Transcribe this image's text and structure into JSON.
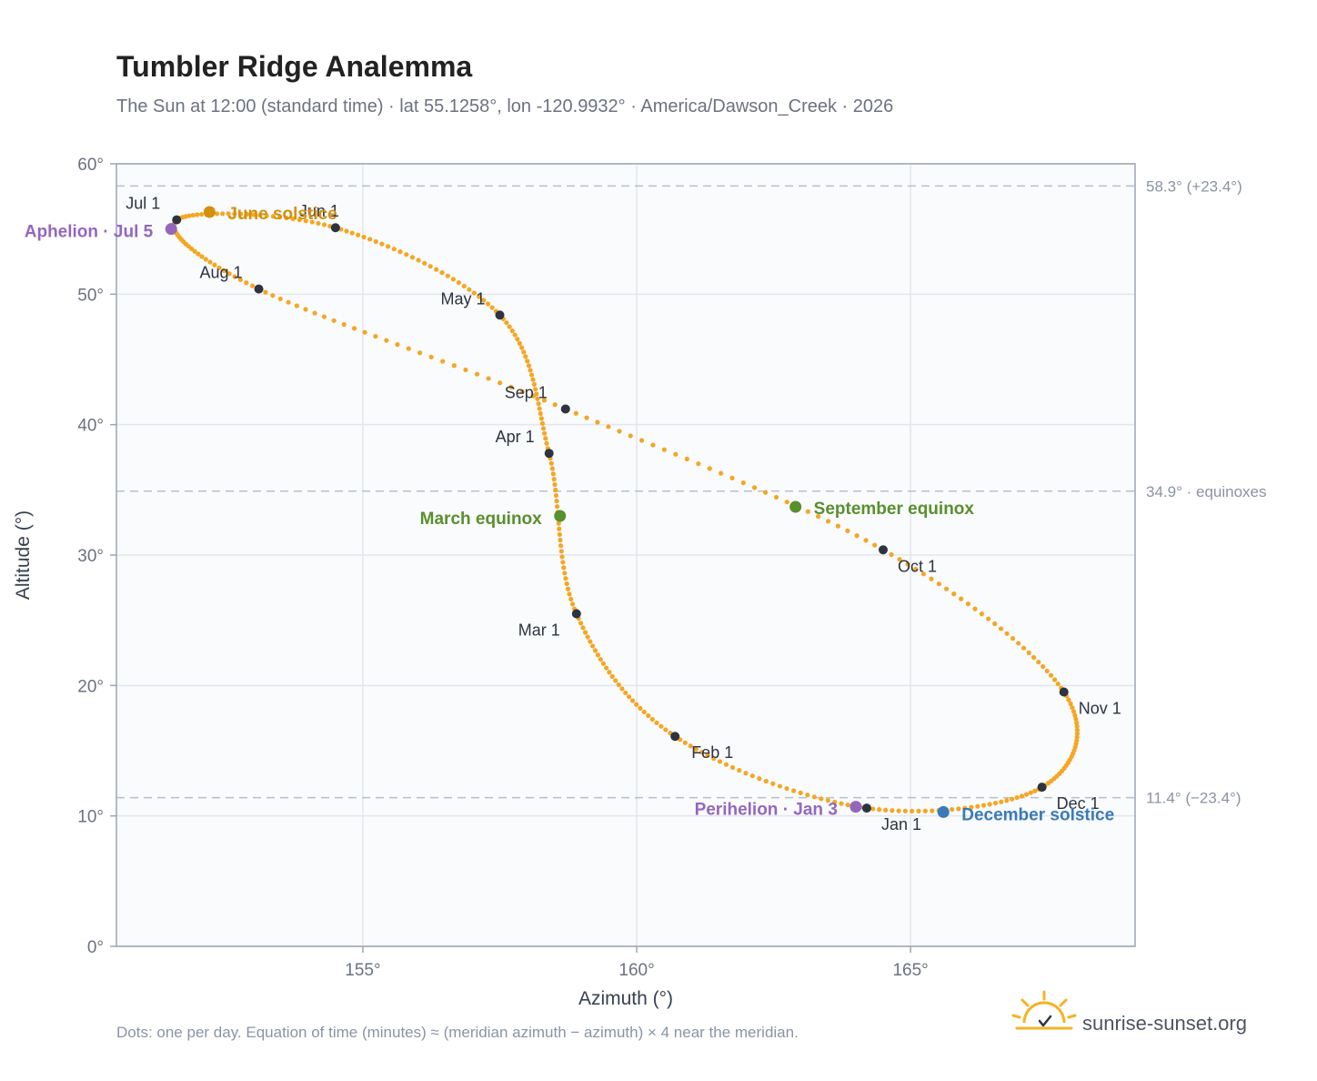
{
  "header": {
    "title": "Tumbler Ridge Analemma",
    "subtitle": "The Sun at 12:00 (standard time) · lat 55.1258°, lon -120.9932° · America/Dawson_Creek · 2026"
  },
  "footer": {
    "note": "Dots: one per day. Equation of time (minutes) ≈ (meridian azimuth − azimuth) × 4 near the meridian.",
    "brand": "sunrise-sunset.org"
  },
  "chart_data": {
    "type": "scatter",
    "title": "Tumbler Ridge Analemma",
    "xlabel": "Azimuth (°)",
    "ylabel": "Altitude (°)",
    "xlim": [
      150.5,
      169.1
    ],
    "ylim": [
      0,
      60
    ],
    "x_ticks": [
      {
        "value": 155,
        "label": "155°"
      },
      {
        "value": 160,
        "label": "160°"
      },
      {
        "value": 165,
        "label": "165°"
      }
    ],
    "y_ticks": [
      {
        "value": 0,
        "label": "0°"
      },
      {
        "value": 10,
        "label": "10°"
      },
      {
        "value": 20,
        "label": "20°"
      },
      {
        "value": 30,
        "label": "30°"
      },
      {
        "value": 40,
        "label": "40°"
      },
      {
        "value": 50,
        "label": "50°"
      },
      {
        "value": 60,
        "label": "60°"
      }
    ],
    "grid": true,
    "reference_lines": [
      {
        "value": 58.3,
        "label": "58.3° (+23.4°)"
      },
      {
        "value": 34.9,
        "label": "34.9° · equinoxes"
      },
      {
        "value": 11.4,
        "label": "11.4° (−23.4°)"
      }
    ],
    "daily_dot_color": "#f5a623",
    "month_points": [
      {
        "label": "Jan 1",
        "az": 164.2,
        "alt": 10.6
      },
      {
        "label": "Feb 1",
        "az": 160.7,
        "alt": 16.1
      },
      {
        "label": "Mar 1",
        "az": 158.9,
        "alt": 25.5
      },
      {
        "label": "Apr 1",
        "az": 158.4,
        "alt": 37.8
      },
      {
        "label": "May 1",
        "az": 157.5,
        "alt": 48.4
      },
      {
        "label": "Jun 1",
        "az": 154.5,
        "alt": 55.1
      },
      {
        "label": "Jul 1",
        "az": 151.6,
        "alt": 55.7
      },
      {
        "label": "Aug 1",
        "az": 153.1,
        "alt": 50.4
      },
      {
        "label": "Sep 1",
        "az": 158.7,
        "alt": 41.2
      },
      {
        "label": "Oct 1",
        "az": 164.5,
        "alt": 30.4
      },
      {
        "label": "Nov 1",
        "az": 167.8,
        "alt": 19.5
      },
      {
        "label": "Dec 1",
        "az": 167.4,
        "alt": 12.2
      }
    ],
    "special_points": [
      {
        "label": "June solstice",
        "az": 152.2,
        "alt": 56.3,
        "color": "#d4900d"
      },
      {
        "label": "Aphelion · Jul 5",
        "az": 151.5,
        "alt": 55.0,
        "color": "#9467bd"
      },
      {
        "label": "March equinox",
        "az": 158.6,
        "alt": 33.0,
        "color": "#5a8f2e"
      },
      {
        "label": "September equinox",
        "az": 162.9,
        "alt": 33.7,
        "color": "#5a8f2e"
      },
      {
        "label": "Perihelion · Jan 3",
        "az": 164.0,
        "alt": 10.7,
        "color": "#9467bd"
      },
      {
        "label": "December solstice",
        "az": 165.6,
        "alt": 10.3,
        "color": "#3a7ab8"
      }
    ]
  }
}
